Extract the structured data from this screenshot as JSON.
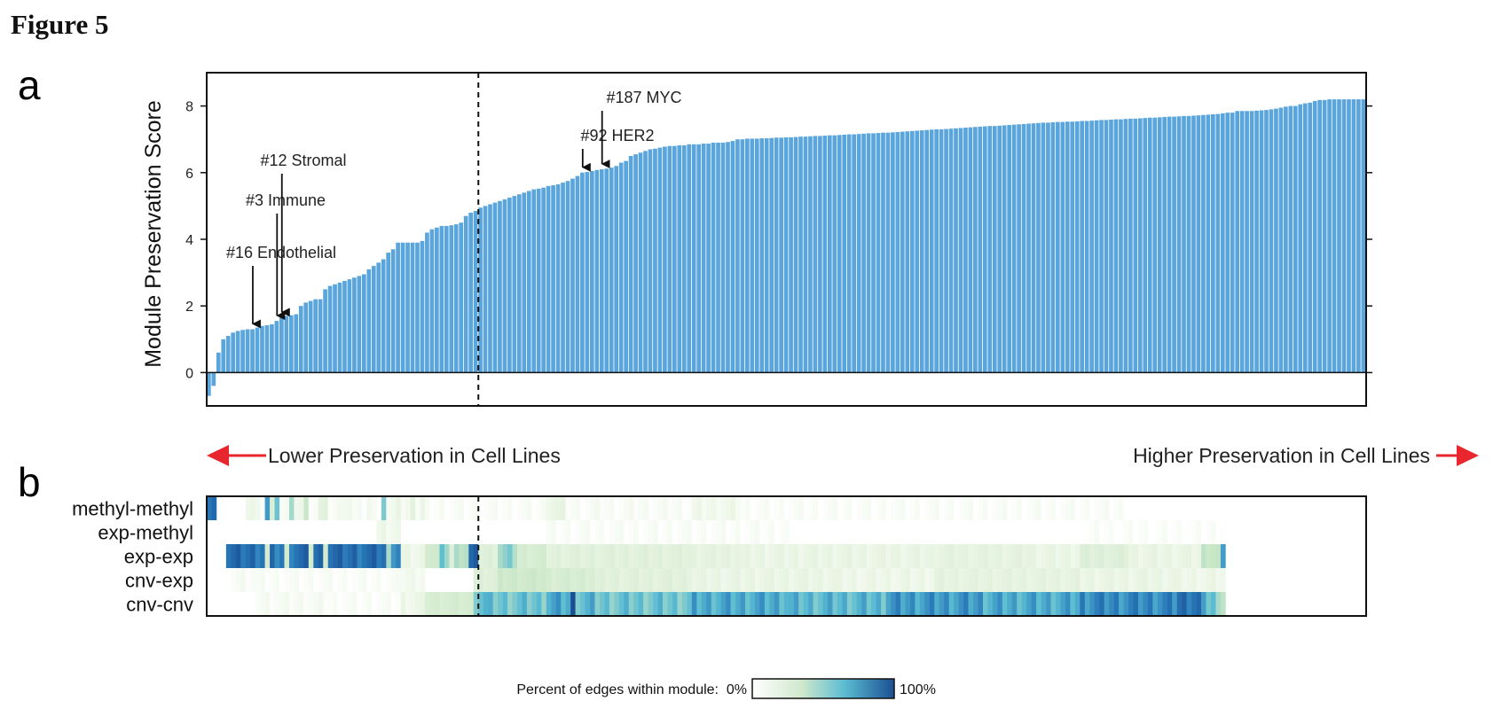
{
  "figure_title": "Figure 5",
  "colors": {
    "bar": "#5aa5dc",
    "bar_edge": "#ffffff",
    "arrow_red": "#e8262e",
    "heat_low": "#ffffff",
    "heat_mid": "#cfe8cc",
    "heat_high_mid": "#5bbcd2",
    "heat_high": "#1a4f93"
  },
  "chart_data": [
    {
      "panel": "a",
      "type": "bar",
      "ylabel": "Module Preservation Score",
      "ylim": [
        -1,
        9
      ],
      "yticks": [
        0,
        2,
        4,
        6,
        8
      ],
      "grid": false,
      "dashed_divider_after_index": 55,
      "left_label": "Lower Preservation in Cell Lines",
      "right_label": "Higher Preservation in Cell Lines",
      "annotations": [
        {
          "label": "#16 Endothelial",
          "index": 9
        },
        {
          "label": "#3 Immune",
          "index": 14
        },
        {
          "label": "#12 Stromal",
          "index": 15
        },
        {
          "label": "#92 HER2",
          "index": 77
        },
        {
          "label": "#187 MYC",
          "index": 81
        }
      ],
      "values": [
        -0.7,
        -0.4,
        0.6,
        1.0,
        1.1,
        1.2,
        1.25,
        1.28,
        1.3,
        1.3,
        1.35,
        1.4,
        1.42,
        1.45,
        1.55,
        1.65,
        1.7,
        1.72,
        1.75,
        2.0,
        2.1,
        2.15,
        2.2,
        2.2,
        2.5,
        2.6,
        2.65,
        2.7,
        2.75,
        2.8,
        2.85,
        2.9,
        2.95,
        3.1,
        3.2,
        3.3,
        3.4,
        3.6,
        3.7,
        3.9,
        3.9,
        3.9,
        3.9,
        3.9,
        3.95,
        4.2,
        4.3,
        4.35,
        4.4,
        4.4,
        4.42,
        4.45,
        4.5,
        4.7,
        4.8,
        4.85,
        4.95,
        5.0,
        5.05,
        5.1,
        5.15,
        5.2,
        5.25,
        5.3,
        5.35,
        5.4,
        5.45,
        5.5,
        5.52,
        5.55,
        5.6,
        5.62,
        5.65,
        5.7,
        5.75,
        5.82,
        5.9,
        6.0,
        6.02,
        6.05,
        6.08,
        6.1,
        6.12,
        6.15,
        6.2,
        6.3,
        6.35,
        6.5,
        6.55,
        6.6,
        6.65,
        6.7,
        6.72,
        6.75,
        6.78,
        6.8,
        6.8,
        6.82,
        6.82,
        6.85,
        6.85,
        6.85,
        6.87,
        6.87,
        6.9,
        6.9,
        6.9,
        6.92,
        6.95,
        7.0,
        7.0,
        7.02,
        7.02,
        7.02,
        7.03,
        7.03,
        7.04,
        7.05,
        7.05,
        7.06,
        7.06,
        7.07,
        7.08,
        7.08,
        7.09,
        7.1,
        7.1,
        7.11,
        7.12,
        7.12,
        7.13,
        7.14,
        7.15,
        7.15,
        7.16,
        7.17,
        7.18,
        7.18,
        7.19,
        7.2,
        7.2,
        7.21,
        7.22,
        7.23,
        7.24,
        7.25,
        7.26,
        7.27,
        7.28,
        7.29,
        7.3,
        7.3,
        7.31,
        7.32,
        7.33,
        7.34,
        7.35,
        7.36,
        7.37,
        7.38,
        7.39,
        7.4,
        7.4,
        7.41,
        7.42,
        7.43,
        7.44,
        7.45,
        7.46,
        7.47,
        7.48,
        7.49,
        7.5,
        7.5,
        7.51,
        7.52,
        7.52,
        7.53,
        7.53,
        7.54,
        7.55,
        7.55,
        7.56,
        7.57,
        7.58,
        7.58,
        7.59,
        7.6,
        7.6,
        7.61,
        7.62,
        7.62,
        7.63,
        7.64,
        7.65,
        7.65,
        7.66,
        7.67,
        7.68,
        7.68,
        7.69,
        7.7,
        7.7,
        7.71,
        7.72,
        7.73,
        7.74,
        7.75,
        7.76,
        7.78,
        7.8,
        7.8,
        7.85,
        7.85,
        7.85,
        7.85,
        7.86,
        7.87,
        7.88,
        7.9,
        7.92,
        7.95,
        7.98,
        8.0,
        8.0,
        8.05,
        8.08,
        8.1,
        8.15,
        8.18,
        8.18,
        8.2,
        8.2,
        8.2,
        8.2,
        8.2,
        8.2,
        8.2,
        8.2
      ]
    },
    {
      "panel": "b",
      "type": "heatmap",
      "rows": [
        "methyl-methyl",
        "exp-methyl",
        "exp-exp",
        "cnv-exp",
        "cnv-cnv"
      ],
      "dashed_divider_after_index": 55,
      "colorbar": {
        "label": "Percent of edges within module:",
        "min_label": "0%",
        "max_label": "100%",
        "range": [
          0,
          100
        ]
      },
      "segments": [
        [
          [
            0,
            2,
            90
          ],
          [
            2,
            8,
            0
          ],
          [
            8,
            10,
            10
          ],
          [
            10,
            12,
            5
          ],
          [
            12,
            13,
            70
          ],
          [
            13,
            14,
            20
          ],
          [
            14,
            15,
            65
          ],
          [
            15,
            17,
            5
          ],
          [
            17,
            18,
            40
          ],
          [
            18,
            20,
            10
          ],
          [
            20,
            21,
            30
          ],
          [
            21,
            23,
            5
          ],
          [
            23,
            25,
            15
          ],
          [
            25,
            28,
            5
          ],
          [
            28,
            30,
            10
          ],
          [
            30,
            33,
            3
          ],
          [
            33,
            34,
            8
          ],
          [
            34,
            36,
            3
          ],
          [
            36,
            37,
            55
          ],
          [
            37,
            39,
            5
          ],
          [
            39,
            40,
            15
          ],
          [
            40,
            42,
            5
          ],
          [
            42,
            43,
            20
          ],
          [
            43,
            44,
            5
          ],
          [
            44,
            45,
            10
          ],
          [
            45,
            70,
            3
          ],
          [
            70,
            74,
            12
          ],
          [
            74,
            100,
            4
          ],
          [
            100,
            110,
            8
          ],
          [
            110,
            190,
            3
          ],
          [
            190,
            210,
            0
          ]
        ],
        [
          [
            0,
            35,
            0
          ],
          [
            35,
            40,
            8
          ],
          [
            40,
            70,
            0
          ],
          [
            70,
            120,
            3
          ],
          [
            120,
            180,
            0
          ],
          [
            180,
            210,
            2
          ]
        ],
        [
          [
            0,
            4,
            0
          ],
          [
            4,
            12,
            85
          ],
          [
            12,
            13,
            25
          ],
          [
            13,
            16,
            80
          ],
          [
            16,
            17,
            25
          ],
          [
            17,
            21,
            85
          ],
          [
            21,
            22,
            30
          ],
          [
            22,
            24,
            85
          ],
          [
            24,
            25,
            30
          ],
          [
            25,
            37,
            85
          ],
          [
            37,
            38,
            40
          ],
          [
            38,
            40,
            80
          ],
          [
            40,
            45,
            10
          ],
          [
            45,
            48,
            30
          ],
          [
            48,
            50,
            50
          ],
          [
            50,
            51,
            20
          ],
          [
            51,
            54,
            40
          ],
          [
            54,
            56,
            85
          ],
          [
            56,
            60,
            20
          ],
          [
            60,
            64,
            45
          ],
          [
            64,
            70,
            25
          ],
          [
            70,
            100,
            18
          ],
          [
            100,
            110,
            15
          ],
          [
            110,
            150,
            12
          ],
          [
            150,
            170,
            15
          ],
          [
            170,
            180,
            12
          ],
          [
            180,
            190,
            20
          ],
          [
            190,
            205,
            12
          ],
          [
            205,
            209,
            35
          ],
          [
            209,
            210,
            60
          ]
        ],
        [
          [
            0,
            5,
            0
          ],
          [
            5,
            10,
            5
          ],
          [
            10,
            40,
            3
          ],
          [
            40,
            45,
            8
          ],
          [
            45,
            55,
            0
          ],
          [
            55,
            60,
            20
          ],
          [
            60,
            70,
            30
          ],
          [
            70,
            80,
            25
          ],
          [
            80,
            100,
            18
          ],
          [
            100,
            130,
            12
          ],
          [
            130,
            150,
            10
          ],
          [
            150,
            180,
            15
          ],
          [
            180,
            200,
            12
          ],
          [
            200,
            210,
            10
          ]
        ],
        [
          [
            0,
            10,
            0
          ],
          [
            10,
            25,
            5
          ],
          [
            25,
            40,
            3
          ],
          [
            40,
            45,
            10
          ],
          [
            45,
            55,
            25
          ],
          [
            55,
            58,
            60
          ],
          [
            58,
            70,
            55
          ],
          [
            70,
            75,
            65
          ],
          [
            75,
            76,
            95
          ],
          [
            76,
            80,
            60
          ],
          [
            80,
            100,
            55
          ],
          [
            100,
            120,
            65
          ],
          [
            120,
            140,
            60
          ],
          [
            140,
            160,
            70
          ],
          [
            160,
            180,
            65
          ],
          [
            180,
            200,
            75
          ],
          [
            200,
            205,
            85
          ],
          [
            205,
            208,
            60
          ],
          [
            208,
            210,
            40
          ]
        ]
      ]
    }
  ]
}
